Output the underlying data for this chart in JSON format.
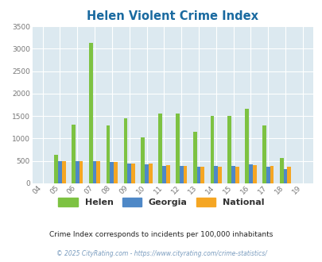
{
  "title": "Helen Violent Crime Index",
  "years": [
    "04",
    "05",
    "06",
    "07",
    "08",
    "09",
    "10",
    "11",
    "12",
    "13",
    "14",
    "15",
    "16",
    "17",
    "18",
    "19"
  ],
  "helen": [
    0,
    640,
    1300,
    3130,
    1290,
    1450,
    1020,
    1550,
    1550,
    1150,
    1500,
    1500,
    1670,
    1290,
    560,
    0
  ],
  "georgia": [
    0,
    490,
    490,
    500,
    480,
    450,
    430,
    390,
    390,
    370,
    390,
    390,
    420,
    370,
    320,
    0
  ],
  "national": [
    0,
    490,
    490,
    490,
    470,
    450,
    440,
    400,
    390,
    370,
    380,
    380,
    400,
    390,
    380,
    0
  ],
  "helen_color": "#7dc242",
  "georgia_color": "#4e88c7",
  "national_color": "#f5a623",
  "bg_color": "#dce9f0",
  "ylim": [
    0,
    3500
  ],
  "yticks": [
    0,
    500,
    1000,
    1500,
    2000,
    2500,
    3000,
    3500
  ],
  "title_color": "#1a6aa0",
  "legend_labels": [
    "Helen",
    "Georgia",
    "National"
  ],
  "footnote1": "Crime Index corresponds to incidents per 100,000 inhabitants",
  "footnote2": "© 2025 CityRating.com - https://www.cityrating.com/crime-statistics/",
  "bar_width": 0.22
}
